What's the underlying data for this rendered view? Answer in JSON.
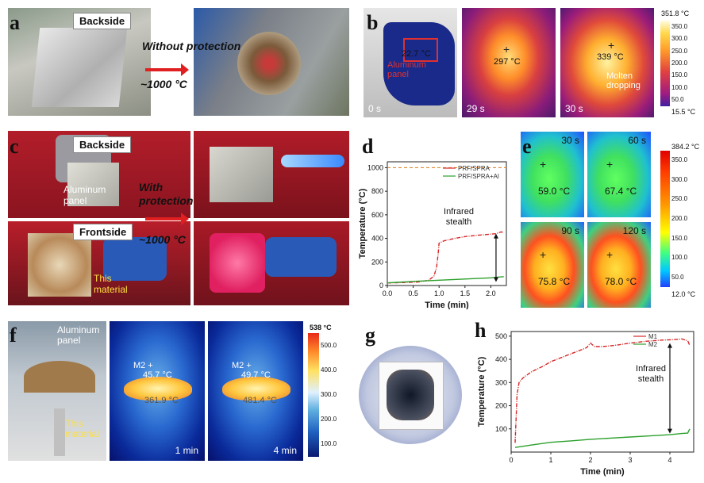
{
  "panels": {
    "a": {
      "label": "a",
      "backside": "Backside",
      "condition": "Without protection",
      "temperature": "~1000 °C"
    },
    "b": {
      "label": "b",
      "frames": [
        {
          "time": "0 s",
          "reading": "22.7 °C",
          "note": "Aluminum panel"
        },
        {
          "time": "29 s",
          "reading": "297 °C"
        },
        {
          "time": "30 s",
          "reading": "339 °C",
          "note": "Molten dropping"
        }
      ],
      "colorbar": {
        "max": "351.8 °C",
        "min": "15.5 °C",
        "ticks": [
          "350.0",
          "300.0",
          "250.0",
          "200.0",
          "150.0",
          "100.0",
          "50.0"
        ]
      }
    },
    "c": {
      "label": "c",
      "backside": "Backside",
      "frontside": "Frontside",
      "panel_note": "Aluminum panel",
      "material_note": "This material",
      "condition": "With protection",
      "temperature": "~1000 °C"
    },
    "e": {
      "label": "e",
      "frames": [
        {
          "time": "30 s",
          "reading": "59.0 °C"
        },
        {
          "time": "60 s",
          "reading": "67.4 °C"
        },
        {
          "time": "90 s",
          "reading": "75.8 °C"
        },
        {
          "time": "120 s",
          "reading": "78.0 °C"
        }
      ],
      "colorbar": {
        "max": "384.2 °C",
        "min": "12.0 °C",
        "ticks": [
          "350.0",
          "300.0",
          "250.0",
          "200.0",
          "150.0",
          "100.0",
          "50.0"
        ]
      }
    },
    "f": {
      "label": "f",
      "panel_note": "Aluminum panel",
      "material_note": "This material",
      "frames": [
        {
          "time": "1 min",
          "m2": "M2",
          "m2_reading": "45.7 °C",
          "m1_reading": "361.9 °C"
        },
        {
          "time": "4 min",
          "m2": "M2",
          "m2_reading": "49.7 °C",
          "m1_reading": "481.4 °C"
        }
      ],
      "colorbar": {
        "max": "538 °C",
        "ticks": [
          "500.0",
          "400.0",
          "300.0",
          "200.0",
          "100.0"
        ]
      }
    },
    "g": {
      "label": "g"
    }
  },
  "chart_data": [
    {
      "panel": "d",
      "type": "line",
      "xlabel": "Time (min)",
      "ylabel": "Temperature (°C)",
      "xlim": [
        0,
        2.3
      ],
      "ylim": [
        0,
        1050
      ],
      "xticks": [
        "0.0",
        "0.5",
        "1.0",
        "1.5",
        "2.0"
      ],
      "yticks": [
        "0",
        "200",
        "400",
        "600",
        "800",
        "1000"
      ],
      "legend": "top-right",
      "annotation": "Infrared stealth",
      "reference_line": 1000,
      "series": [
        {
          "name": "PRF/SPRA",
          "color": "#d62728",
          "x": [
            0,
            0.3,
            0.6,
            0.8,
            0.9,
            0.95,
            0.98,
            1.0,
            1.1,
            1.3,
            1.5,
            1.7,
            1.9,
            2.1,
            2.2,
            2.25
          ],
          "y": [
            22,
            25,
            30,
            45,
            80,
            150,
            260,
            360,
            380,
            400,
            415,
            425,
            432,
            440,
            455,
            450
          ]
        },
        {
          "name": "PRF/SPRA+Al",
          "color": "#2ca02c",
          "x": [
            0,
            0.5,
            1.0,
            1.5,
            2.0,
            2.25
          ],
          "y": [
            22,
            35,
            45,
            55,
            65,
            75
          ]
        }
      ]
    },
    {
      "panel": "h",
      "type": "line",
      "xlabel": "Time (min)",
      "ylabel": "Temperature (°C)",
      "xlim": [
        0,
        4.6
      ],
      "ylim": [
        0,
        520
      ],
      "xticks": [
        "0",
        "1",
        "2",
        "3",
        "4"
      ],
      "yticks": [
        "100",
        "200",
        "300",
        "400",
        "500"
      ],
      "legend": "top-right",
      "annotation": "Infrared stealth",
      "series": [
        {
          "name": "M1",
          "color": "#d62728",
          "x": [
            0.1,
            0.15,
            0.2,
            0.3,
            0.5,
            0.8,
            1.0,
            1.3,
            1.6,
            1.9,
            2.0,
            2.1,
            2.3,
            2.6,
            3.0,
            3.4,
            3.8,
            4.1,
            4.3,
            4.45,
            4.5
          ],
          "y": [
            40,
            250,
            300,
            320,
            345,
            370,
            390,
            410,
            430,
            450,
            470,
            455,
            455,
            460,
            470,
            478,
            483,
            485,
            488,
            480,
            460
          ]
        },
        {
          "name": "M2",
          "color": "#2ca02c",
          "x": [
            0.1,
            0.5,
            1.0,
            1.5,
            2.0,
            2.5,
            3.0,
            3.5,
            4.0,
            4.3,
            4.45,
            4.5
          ],
          "y": [
            20,
            30,
            42,
            48,
            55,
            60,
            65,
            70,
            75,
            80,
            82,
            100
          ]
        }
      ]
    }
  ]
}
